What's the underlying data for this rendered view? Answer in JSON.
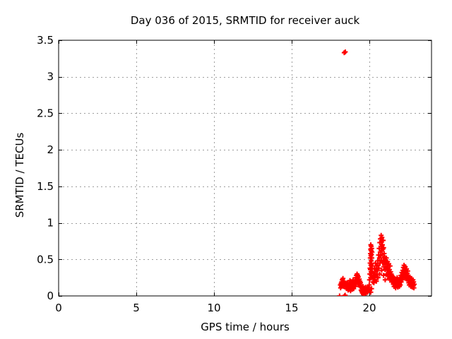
{
  "title": "Day 036 of 2015, SRMTID for receiver auck",
  "chart_data": {
    "type": "scatter",
    "title": "Day 036 of 2015, SRMTID for receiver auck",
    "xlabel": "GPS time / hours",
    "ylabel": "SRMTID / TECUs",
    "xlim": [
      0,
      24
    ],
    "ylim": [
      0,
      3.5
    ],
    "xticks": {
      "values": [
        0,
        5,
        10,
        15,
        20
      ],
      "labels": [
        "0",
        "5",
        "10",
        "15",
        "20"
      ]
    },
    "yticks": {
      "values": [
        0,
        0.5,
        1,
        1.5,
        2,
        2.5,
        3,
        3.5
      ],
      "labels": [
        "0",
        "0.5",
        "1",
        "1.5",
        "2",
        "2.5",
        "3",
        "3.5"
      ]
    },
    "grid": true,
    "legend": "none",
    "marker": "plus",
    "marker_color": "#ff0000",
    "axis_color": "#000000",
    "grid_color": "#9e9e9e",
    "background_color": "#ffffff",
    "series": [
      {
        "name": "SRMTID",
        "points": [
          [
            18.08,
            0.0
          ],
          [
            18.4,
            0.0
          ],
          [
            18.44,
            0.01
          ],
          [
            18.38,
            3.33
          ],
          [
            18.45,
            3.34
          ],
          [
            18.13,
            0.15
          ],
          [
            18.15,
            0.11
          ],
          [
            18.18,
            0.17
          ],
          [
            18.2,
            0.13
          ],
          [
            18.22,
            0.19
          ],
          [
            18.25,
            0.22
          ],
          [
            18.27,
            0.16
          ],
          [
            18.3,
            0.24
          ],
          [
            18.32,
            0.18
          ],
          [
            18.35,
            0.13
          ],
          [
            18.38,
            0.2
          ],
          [
            18.41,
            0.15
          ],
          [
            18.44,
            0.17
          ],
          [
            18.47,
            0.12
          ],
          [
            18.5,
            0.16
          ],
          [
            18.53,
            0.1
          ],
          [
            18.56,
            0.14
          ],
          [
            18.59,
            0.18
          ],
          [
            18.61,
            0.12
          ],
          [
            18.63,
            0.08
          ],
          [
            18.65,
            0.15
          ],
          [
            18.67,
            0.11
          ],
          [
            18.69,
            0.18
          ],
          [
            18.71,
            0.09
          ],
          [
            18.73,
            0.14
          ],
          [
            18.75,
            0.21
          ],
          [
            18.77,
            0.12
          ],
          [
            18.79,
            0.07
          ],
          [
            18.81,
            0.16
          ],
          [
            18.83,
            0.11
          ],
          [
            18.85,
            0.19
          ],
          [
            18.87,
            0.14
          ],
          [
            18.89,
            0.09
          ],
          [
            18.91,
            0.17
          ],
          [
            18.93,
            0.12
          ],
          [
            18.95,
            0.22
          ],
          [
            18.97,
            0.15
          ],
          [
            18.99,
            0.1
          ],
          [
            19.01,
            0.18
          ],
          [
            19.03,
            0.13
          ],
          [
            19.05,
            0.16
          ],
          [
            19.07,
            0.22
          ],
          [
            19.09,
            0.13
          ],
          [
            19.11,
            0.19
          ],
          [
            19.13,
            0.25
          ],
          [
            19.15,
            0.17
          ],
          [
            19.17,
            0.28
          ],
          [
            19.19,
            0.21
          ],
          [
            19.21,
            0.3
          ],
          [
            19.23,
            0.24
          ],
          [
            19.25,
            0.28
          ],
          [
            19.27,
            0.19
          ],
          [
            19.29,
            0.26
          ],
          [
            19.31,
            0.22
          ],
          [
            19.33,
            0.17
          ],
          [
            19.35,
            0.23
          ],
          [
            19.37,
            0.15
          ],
          [
            19.39,
            0.2
          ],
          [
            19.41,
            0.13
          ],
          [
            19.43,
            0.18
          ],
          [
            19.45,
            0.12
          ],
          [
            19.47,
            0.08
          ],
          [
            19.49,
            0.14
          ],
          [
            19.51,
            0.06
          ],
          [
            19.53,
            0.11
          ],
          [
            19.55,
            0.04
          ],
          [
            19.57,
            0.09
          ],
          [
            19.59,
            0.13
          ],
          [
            19.61,
            0.02
          ],
          [
            19.63,
            0.07
          ],
          [
            19.65,
            0.05
          ],
          [
            19.67,
            0.1
          ],
          [
            19.69,
            0.03
          ],
          [
            19.71,
            0.08
          ],
          [
            19.73,
            0.05
          ],
          [
            19.75,
            0.12
          ],
          [
            19.77,
            0.07
          ],
          [
            19.79,
            0.04
          ],
          [
            19.81,
            0.09
          ],
          [
            19.83,
            0.06
          ],
          [
            19.85,
            0.11
          ],
          [
            19.87,
            0.08
          ],
          [
            19.89,
            0.05
          ],
          [
            19.91,
            0.1
          ],
          [
            19.93,
            0.07
          ],
          [
            19.95,
            0.12
          ],
          [
            19.97,
            0.09
          ],
          [
            19.99,
            0.15
          ],
          [
            20.01,
            0.22
          ],
          [
            20.03,
            0.3
          ],
          [
            20.04,
            0.38
          ],
          [
            20.05,
            0.45
          ],
          [
            20.06,
            0.52
          ],
          [
            20.07,
            0.58
          ],
          [
            20.07,
            0.36
          ],
          [
            20.08,
            0.64
          ],
          [
            20.08,
            0.25
          ],
          [
            20.09,
            0.7
          ],
          [
            20.09,
            0.05
          ],
          [
            20.1,
            0.55
          ],
          [
            20.1,
            0.42
          ],
          [
            20.11,
            0.62
          ],
          [
            20.11,
            0.33
          ],
          [
            20.12,
            0.48
          ],
          [
            20.12,
            0.68
          ],
          [
            20.13,
            0.57
          ],
          [
            20.13,
            0.28
          ],
          [
            20.14,
            0.44
          ],
          [
            20.14,
            0.1
          ],
          [
            20.15,
            0.65
          ],
          [
            20.15,
            0.37
          ],
          [
            20.16,
            0.52
          ],
          [
            20.17,
            0.6
          ],
          [
            20.18,
            0.41
          ],
          [
            20.19,
            0.33
          ],
          [
            20.21,
            0.26
          ],
          [
            20.23,
            0.19
          ],
          [
            20.25,
            0.24
          ],
          [
            20.27,
            0.31
          ],
          [
            20.29,
            0.18
          ],
          [
            20.31,
            0.27
          ],
          [
            20.33,
            0.38
          ],
          [
            20.35,
            0.22
          ],
          [
            20.37,
            0.33
          ],
          [
            20.39,
            0.45
          ],
          [
            20.41,
            0.28
          ],
          [
            20.43,
            0.36
          ],
          [
            20.45,
            0.2
          ],
          [
            20.47,
            0.41
          ],
          [
            20.49,
            0.3
          ],
          [
            20.51,
            0.25
          ],
          [
            20.53,
            0.35
          ],
          [
            20.55,
            0.48
          ],
          [
            20.56,
            0.25
          ],
          [
            20.57,
            0.42
          ],
          [
            20.59,
            0.56
          ],
          [
            20.61,
            0.38
          ],
          [
            20.63,
            0.65
          ],
          [
            20.65,
            0.52
          ],
          [
            20.66,
            0.3
          ],
          [
            20.67,
            0.73
          ],
          [
            20.68,
            0.45
          ],
          [
            20.7,
            0.6
          ],
          [
            20.71,
            0.78
          ],
          [
            20.73,
            0.55
          ],
          [
            20.74,
            0.68
          ],
          [
            20.76,
            0.83
          ],
          [
            20.77,
            0.49
          ],
          [
            20.78,
            0.74
          ],
          [
            20.79,
            0.35
          ],
          [
            20.8,
            0.62
          ],
          [
            20.81,
            0.8
          ],
          [
            20.83,
            0.57
          ],
          [
            20.84,
            0.7
          ],
          [
            20.86,
            0.45
          ],
          [
            20.87,
            0.64
          ],
          [
            20.89,
            0.76
          ],
          [
            20.9,
            0.52
          ],
          [
            20.91,
            0.28
          ],
          [
            20.92,
            0.66
          ],
          [
            20.93,
            0.4
          ],
          [
            20.95,
            0.58
          ],
          [
            20.97,
            0.47
          ],
          [
            20.99,
            0.53
          ],
          [
            21.01,
            0.36
          ],
          [
            21.02,
            0.22
          ],
          [
            21.03,
            0.44
          ],
          [
            21.05,
            0.48
          ],
          [
            21.07,
            0.38
          ],
          [
            21.09,
            0.52
          ],
          [
            21.11,
            0.3
          ],
          [
            21.13,
            0.43
          ],
          [
            21.15,
            0.35
          ],
          [
            21.17,
            0.47
          ],
          [
            21.19,
            0.27
          ],
          [
            21.21,
            0.39
          ],
          [
            21.23,
            0.32
          ],
          [
            21.25,
            0.44
          ],
          [
            21.27,
            0.24
          ],
          [
            21.29,
            0.36
          ],
          [
            21.31,
            0.29
          ],
          [
            21.33,
            0.41
          ],
          [
            21.35,
            0.22
          ],
          [
            21.37,
            0.33
          ],
          [
            21.39,
            0.26
          ],
          [
            21.41,
            0.3
          ],
          [
            21.43,
            0.19
          ],
          [
            21.45,
            0.28
          ],
          [
            21.47,
            0.23
          ],
          [
            21.49,
            0.26
          ],
          [
            21.51,
            0.2
          ],
          [
            21.53,
            0.25
          ],
          [
            21.55,
            0.16
          ],
          [
            21.57,
            0.22
          ],
          [
            21.59,
            0.13
          ],
          [
            21.61,
            0.19
          ],
          [
            21.63,
            0.24
          ],
          [
            21.65,
            0.15
          ],
          [
            21.67,
            0.21
          ],
          [
            21.69,
            0.11
          ],
          [
            21.71,
            0.17
          ],
          [
            21.73,
            0.23
          ],
          [
            21.75,
            0.14
          ],
          [
            21.77,
            0.19
          ],
          [
            21.79,
            0.25
          ],
          [
            21.81,
            0.16
          ],
          [
            21.83,
            0.12
          ],
          [
            21.85,
            0.2
          ],
          [
            21.87,
            0.15
          ],
          [
            21.89,
            0.22
          ],
          [
            21.91,
            0.17
          ],
          [
            21.93,
            0.13
          ],
          [
            21.95,
            0.18
          ],
          [
            21.97,
            0.24
          ],
          [
            21.99,
            0.15
          ],
          [
            22.01,
            0.21
          ],
          [
            22.03,
            0.28
          ],
          [
            22.05,
            0.19
          ],
          [
            22.07,
            0.25
          ],
          [
            22.09,
            0.32
          ],
          [
            22.11,
            0.22
          ],
          [
            22.13,
            0.29
          ],
          [
            22.15,
            0.35
          ],
          [
            22.17,
            0.26
          ],
          [
            22.19,
            0.39
          ],
          [
            22.21,
            0.31
          ],
          [
            22.23,
            0.42
          ],
          [
            22.25,
            0.27
          ],
          [
            22.27,
            0.36
          ],
          [
            22.29,
            0.3
          ],
          [
            22.31,
            0.4
          ],
          [
            22.33,
            0.24
          ],
          [
            22.35,
            0.33
          ],
          [
            22.37,
            0.28
          ],
          [
            22.39,
            0.37
          ],
          [
            22.41,
            0.23
          ],
          [
            22.43,
            0.31
          ],
          [
            22.45,
            0.26
          ],
          [
            22.47,
            0.34
          ],
          [
            22.49,
            0.21
          ],
          [
            22.51,
            0.27
          ],
          [
            22.53,
            0.18
          ],
          [
            22.55,
            0.24
          ],
          [
            22.57,
            0.15
          ],
          [
            22.59,
            0.21
          ],
          [
            22.61,
            0.26
          ],
          [
            22.63,
            0.17
          ],
          [
            22.65,
            0.22
          ],
          [
            22.67,
            0.13
          ],
          [
            22.69,
            0.19
          ],
          [
            22.71,
            0.24
          ],
          [
            22.73,
            0.16
          ],
          [
            22.75,
            0.2
          ],
          [
            22.77,
            0.12
          ],
          [
            22.79,
            0.17
          ],
          [
            22.81,
            0.22
          ],
          [
            22.83,
            0.14
          ],
          [
            22.85,
            0.19
          ],
          [
            22.87,
            0.11
          ],
          [
            22.89,
            0.16
          ]
        ]
      }
    ]
  }
}
